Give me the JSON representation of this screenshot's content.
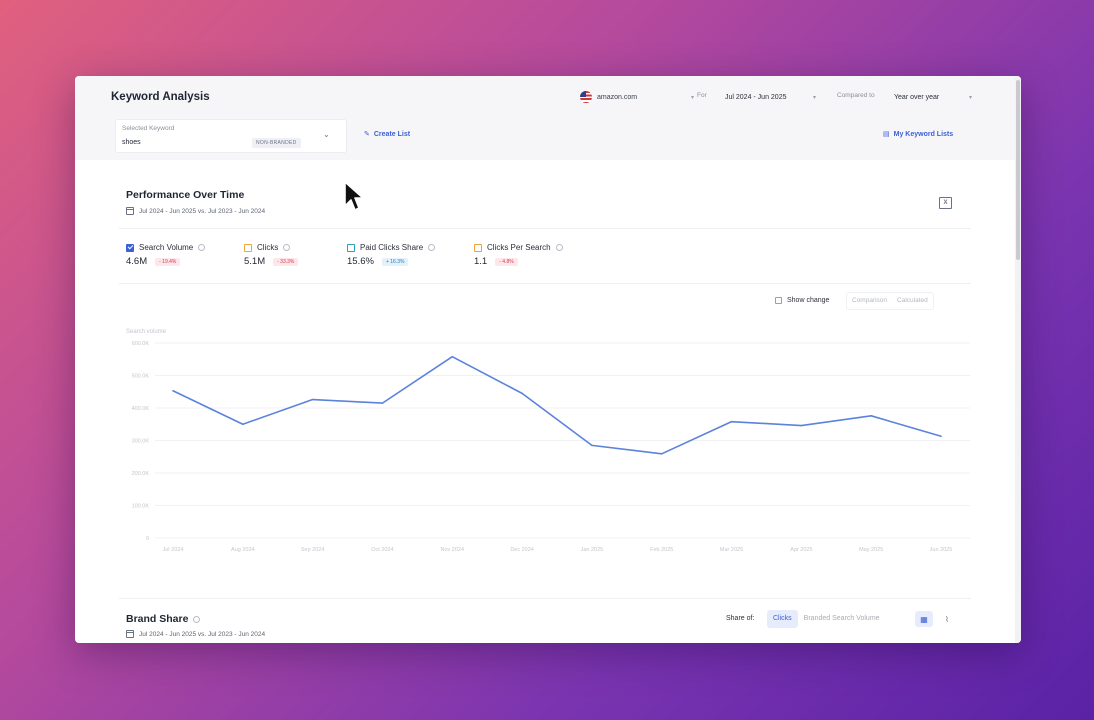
{
  "header": {
    "title": "Keyword Analysis",
    "site": "amazon.com",
    "for_label": "For",
    "date_range": "Jul 2024 - Jun 2025",
    "compared_label": "Compared to",
    "comparison": "Year over year"
  },
  "keyword": {
    "label": "Selected Keyword",
    "value": "shoes",
    "badge": "NON-BRANDED",
    "create_list": "Create List",
    "my_lists": "My Keyword Lists"
  },
  "performance": {
    "title": "Performance Over Time",
    "dates": "Jul 2024 - Jun 2025 vs. Jul 2023 - Jun 2024",
    "metrics": [
      {
        "label": "Search Volume",
        "value": "4.6M",
        "delta": "- 19.4%",
        "checked": true,
        "color": "#3b5fd6"
      },
      {
        "label": "Clicks",
        "value": "5.1M",
        "delta": "- 33.3%",
        "checked": false,
        "color": "#f0a23a"
      },
      {
        "label": "Paid Clicks Share",
        "value": "15.6%",
        "delta": "+ 16.3%",
        "checked": false,
        "color": "#2aa1b9"
      },
      {
        "label": "Clicks Per Search",
        "value": "1.1",
        "delta": "- 4.8%",
        "checked": false,
        "color": "#f0a23a"
      }
    ],
    "show_change": "Show change",
    "seg_options": [
      "Comparison",
      "Calculated"
    ]
  },
  "chart_data": {
    "type": "line",
    "ylabel": "Search volume",
    "ylim": [
      0,
      600000
    ],
    "y_ticks": [
      "600.0K",
      "500.0K",
      "400.0K",
      "300.0K",
      "200.0K",
      "100.0K",
      "0"
    ],
    "categories": [
      "Jul 2024",
      "Aug 2024",
      "Sep 2024",
      "Oct 2024",
      "Nov 2024",
      "Dec 2024",
      "Jan 2025",
      "Feb 2025",
      "Mar 2025",
      "Apr 2025",
      "May 2025",
      "Jun 2025"
    ],
    "series": [
      {
        "values": [
          453000,
          350000,
          426000,
          415000,
          558000,
          445000,
          285000,
          259000,
          358000,
          346000,
          376000,
          313000
        ]
      }
    ],
    "color": "#5b82dc",
    "grid": true
  },
  "brand_share": {
    "title": "Brand Share",
    "dates": "Jul 2024 - Jun 2025 vs. Jul 2023 - Jun 2024",
    "share_of_label": "Share of:",
    "options": [
      "Clicks",
      "Branded Search Volume"
    ]
  }
}
